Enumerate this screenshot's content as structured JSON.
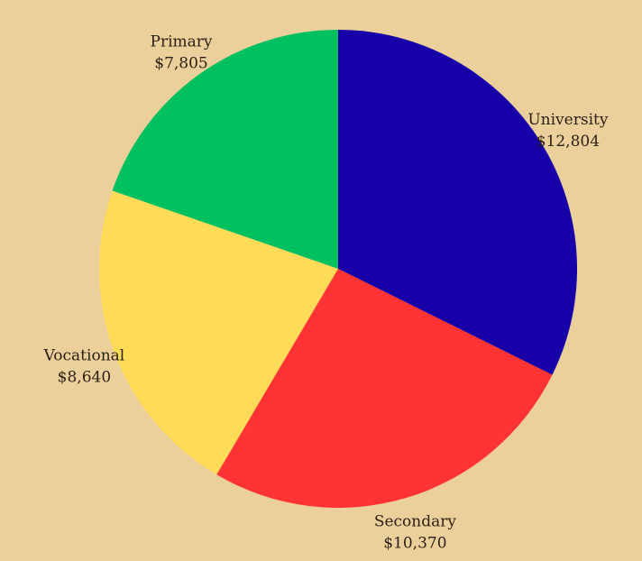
{
  "chart_data": {
    "type": "pie",
    "slices": [
      {
        "label": "University",
        "value": 12804,
        "value_label": "$12,804",
        "color": "#1800a8"
      },
      {
        "label": "Secondary",
        "value": 10370,
        "value_label": "$10,370",
        "color": "#ff3333"
      },
      {
        "label": "Vocational",
        "value": 8640,
        "value_label": "$8,640",
        "color": "#ffdb58"
      },
      {
        "label": "Primary",
        "value": 7805,
        "value_label": "$7,805",
        "color": "#00c060"
      }
    ],
    "start_angle": "12 o'clock",
    "direction": "clockwise",
    "legend": "none"
  },
  "colors": {
    "background": "#ecd09b",
    "label_text": "#2a1f12"
  }
}
